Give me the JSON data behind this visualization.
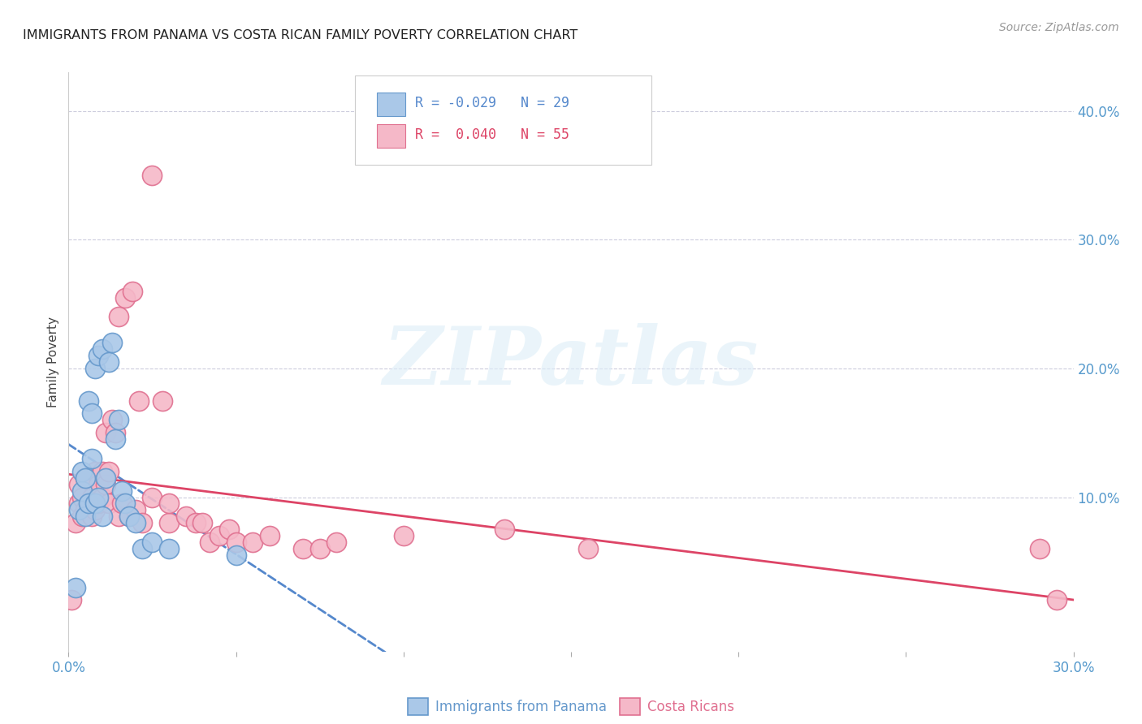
{
  "title": "IMMIGRANTS FROM PANAMA VS COSTA RICAN FAMILY POVERTY CORRELATION CHART",
  "source": "Source: ZipAtlas.com",
  "ylabel": "Family Poverty",
  "xlim": [
    0.0,
    0.3
  ],
  "ylim": [
    -0.02,
    0.43
  ],
  "right_yticks": [
    0.1,
    0.2,
    0.3,
    0.4
  ],
  "right_yticklabels": [
    "10.0%",
    "20.0%",
    "30.0%",
    "40.0%"
  ],
  "x_tick_positions": [
    0.0,
    0.05,
    0.1,
    0.15,
    0.2,
    0.25,
    0.3
  ],
  "grid_color": "#ccccdd",
  "background_color": "#ffffff",
  "series1_name": "Immigrants from Panama",
  "series1_color": "#aac8e8",
  "series1_edge_color": "#6699cc",
  "series1_R": "-0.029",
  "series1_N": "29",
  "series2_name": "Costa Ricans",
  "series2_color": "#f5b8c8",
  "series2_edge_color": "#e07090",
  "series2_R": "0.040",
  "series2_N": "55",
  "trend1_color": "#5588cc",
  "trend2_color": "#dd4466",
  "watermark": "ZIPatlas",
  "panama_x": [
    0.002,
    0.003,
    0.004,
    0.004,
    0.005,
    0.005,
    0.006,
    0.006,
    0.007,
    0.007,
    0.008,
    0.008,
    0.009,
    0.009,
    0.01,
    0.01,
    0.011,
    0.012,
    0.013,
    0.014,
    0.015,
    0.016,
    0.017,
    0.018,
    0.02,
    0.022,
    0.025,
    0.03,
    0.05
  ],
  "panama_y": [
    0.03,
    0.09,
    0.105,
    0.12,
    0.085,
    0.115,
    0.095,
    0.175,
    0.13,
    0.165,
    0.095,
    0.2,
    0.1,
    0.21,
    0.085,
    0.215,
    0.115,
    0.205,
    0.22,
    0.145,
    0.16,
    0.105,
    0.095,
    0.085,
    0.08,
    0.06,
    0.065,
    0.06,
    0.055
  ],
  "costarica_x": [
    0.001,
    0.002,
    0.003,
    0.003,
    0.004,
    0.004,
    0.005,
    0.005,
    0.006,
    0.006,
    0.007,
    0.007,
    0.008,
    0.008,
    0.009,
    0.009,
    0.01,
    0.01,
    0.011,
    0.011,
    0.012,
    0.012,
    0.013,
    0.014,
    0.015,
    0.015,
    0.016,
    0.017,
    0.018,
    0.019,
    0.02,
    0.021,
    0.022,
    0.025,
    0.025,
    0.028,
    0.03,
    0.03,
    0.035,
    0.038,
    0.04,
    0.042,
    0.045,
    0.048,
    0.05,
    0.055,
    0.06,
    0.07,
    0.075,
    0.08,
    0.1,
    0.13,
    0.155,
    0.29,
    0.295
  ],
  "costarica_y": [
    0.02,
    0.08,
    0.095,
    0.11,
    0.085,
    0.1,
    0.09,
    0.115,
    0.095,
    0.115,
    0.085,
    0.1,
    0.09,
    0.12,
    0.095,
    0.11,
    0.1,
    0.12,
    0.11,
    0.15,
    0.12,
    0.095,
    0.16,
    0.15,
    0.085,
    0.24,
    0.095,
    0.255,
    0.085,
    0.26,
    0.09,
    0.175,
    0.08,
    0.35,
    0.1,
    0.175,
    0.08,
    0.095,
    0.085,
    0.08,
    0.08,
    0.065,
    0.07,
    0.075,
    0.065,
    0.065,
    0.07,
    0.06,
    0.06,
    0.065,
    0.07,
    0.075,
    0.06,
    0.06,
    0.02
  ]
}
